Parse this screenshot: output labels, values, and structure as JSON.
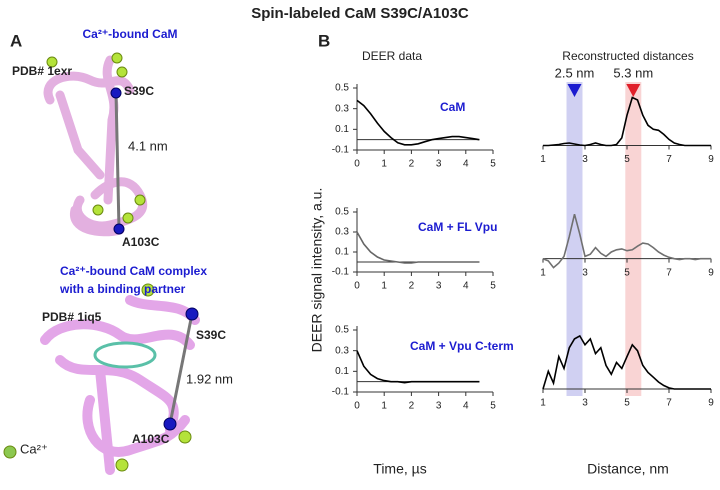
{
  "title": "Spin-labeled CaM S39C/A103C",
  "panel_a": {
    "label": "A",
    "top": {
      "title": "Ca²⁺-bound CaM",
      "pdb": "PDB# 1exr",
      "site1": "S39C",
      "distance": "4.1 nm",
      "site2": "A103C"
    },
    "bottom": {
      "title_lines": [
        "Ca²⁺-bound CaM complex",
        "with a binding partner"
      ],
      "pdb": "PDB# 1iq5",
      "site1": "S39C",
      "distance": "1.92 nm",
      "site2": "A103C",
      "ion": "Ca²⁺"
    }
  },
  "panel_b": {
    "label": "B",
    "left_header": "DEER data",
    "right_header": "Reconstructed distances",
    "y_label": "DEER signal intensity, a.u.",
    "left_x_label": "Time, µs",
    "right_x_label": "Distance, nm",
    "distances": [
      {
        "label": "2.5 nm",
        "value": 2.5,
        "color": "#1c1cd0",
        "band": "#c8c8f0"
      },
      {
        "label": "5.3 nm",
        "value": 5.3,
        "color": "#e0202a",
        "band": "#f8cccc"
      }
    ]
  },
  "chart_data": [
    {
      "type": "line",
      "annotation": "CaM",
      "color": "#000000",
      "xlim": [
        0,
        5
      ],
      "xticks": [
        0,
        1,
        2,
        3,
        4,
        5
      ],
      "ylim": [
        -0.1,
        0.5
      ],
      "yticks": [
        -0.1,
        0.1,
        0.3,
        0.5
      ],
      "x": [
        0,
        0.25,
        0.5,
        0.75,
        1,
        1.25,
        1.5,
        1.75,
        2,
        2.25,
        2.5,
        2.75,
        3,
        3.25,
        3.5,
        3.75,
        4,
        4.25,
        4.5
      ],
      "values": [
        0.38,
        0.33,
        0.25,
        0.16,
        0.08,
        0.02,
        -0.03,
        -0.05,
        -0.05,
        -0.04,
        -0.02,
        0,
        0.01,
        0.02,
        0.03,
        0.03,
        0.02,
        0.01,
        0
      ]
    },
    {
      "type": "line",
      "annotation": "CaM + FL Vpu",
      "color": "#666666",
      "xlim": [
        0,
        5
      ],
      "xticks": [
        0,
        1,
        2,
        3,
        4,
        5
      ],
      "ylim": [
        -0.1,
        0.5
      ],
      "yticks": [
        -0.1,
        0.1,
        0.3,
        0.5
      ],
      "x": [
        0,
        0.25,
        0.5,
        0.75,
        1,
        1.25,
        1.5,
        1.75,
        2,
        2.25,
        2.5,
        2.75,
        3,
        3.25,
        3.5,
        3.75,
        4,
        4.25,
        4.5
      ],
      "values": [
        0.3,
        0.18,
        0.1,
        0.05,
        0.02,
        0.01,
        0,
        -0.01,
        -0.01,
        0,
        0,
        0,
        0,
        0,
        0,
        0,
        0,
        0,
        0
      ]
    },
    {
      "type": "line",
      "annotation": "CaM + Vpu C-term",
      "color": "#000000",
      "xlim": [
        0,
        5
      ],
      "xticks": [
        0,
        1,
        2,
        3,
        4,
        5
      ],
      "ylim": [
        -0.1,
        0.5
      ],
      "yticks": [
        -0.1,
        0.1,
        0.3,
        0.5
      ],
      "x": [
        0,
        0.25,
        0.5,
        0.75,
        1,
        1.25,
        1.5,
        1.75,
        2,
        2.25,
        2.5,
        2.75,
        3,
        3.25,
        3.5,
        3.75,
        4,
        4.25,
        4.5
      ],
      "values": [
        0.3,
        0.15,
        0.07,
        0.03,
        0.01,
        0,
        0,
        -0.01,
        0,
        0,
        0,
        0,
        0,
        0,
        0,
        0,
        0,
        0,
        0
      ]
    },
    {
      "type": "line",
      "color": "#000000",
      "xlim": [
        1,
        9
      ],
      "xticks": [
        1,
        3,
        5,
        7,
        9
      ],
      "ylim": [
        -0.05,
        1
      ],
      "x": [
        1,
        1.25,
        1.5,
        1.75,
        2,
        2.25,
        2.5,
        2.75,
        3,
        3.25,
        3.5,
        3.75,
        4,
        4.25,
        4.5,
        4.75,
        5,
        5.25,
        5.5,
        5.75,
        6,
        6.25,
        6.5,
        6.75,
        7,
        7.25,
        7.5,
        7.75,
        8,
        8.25,
        8.5,
        8.75,
        9
      ],
      "values": [
        0,
        0,
        0.01,
        0.02,
        0.04,
        0.05,
        0.03,
        0.01,
        0,
        0.02,
        0.05,
        0.02,
        0,
        0,
        0.02,
        0.15,
        0.6,
        0.95,
        0.9,
        0.6,
        0.4,
        0.32,
        0.3,
        0.22,
        0.12,
        0.05,
        0.02,
        0,
        0,
        0,
        0,
        0,
        0
      ]
    },
    {
      "type": "line",
      "color": "#707070",
      "xlim": [
        1,
        9
      ],
      "xticks": [
        1,
        3,
        5,
        7,
        9
      ],
      "ylim": [
        -0.3,
        1.05
      ],
      "x": [
        1,
        1.25,
        1.5,
        1.75,
        2,
        2.25,
        2.5,
        2.75,
        3,
        3.25,
        3.5,
        3.75,
        4,
        4.25,
        4.5,
        4.75,
        5,
        5.25,
        5.5,
        5.75,
        6,
        6.25,
        6.5,
        6.75,
        7,
        7.25,
        7.5,
        7.75,
        8,
        8.25,
        8.5,
        8.75,
        9
      ],
      "values": [
        0,
        -0.05,
        -0.2,
        -0.1,
        0.05,
        0.5,
        1.0,
        0.55,
        0.05,
        0.1,
        0.25,
        0.12,
        0.05,
        0.15,
        0.2,
        0.22,
        0.18,
        0.2,
        0.28,
        0.35,
        0.33,
        0.25,
        0.15,
        0.08,
        0.03,
        0,
        -0.02,
        0,
        0,
        -0.02,
        0,
        0,
        0
      ]
    },
    {
      "type": "line",
      "color": "#000000",
      "xlim": [
        1,
        9
      ],
      "xticks": [
        1,
        3,
        5,
        7,
        9
      ],
      "ylim": [
        -0.05,
        1
      ],
      "x": [
        1,
        1.25,
        1.5,
        1.75,
        2,
        2.25,
        2.5,
        2.75,
        3,
        3.25,
        3.5,
        3.75,
        4,
        4.25,
        4.5,
        4.75,
        5,
        5.25,
        5.5,
        5.75,
        6,
        6.25,
        6.5,
        6.75,
        7,
        7.25,
        7.5,
        7.75,
        8,
        8.25,
        8.5,
        8.75,
        9
      ],
      "values": [
        0,
        0.3,
        0.1,
        0.55,
        0.35,
        0.7,
        0.85,
        0.9,
        0.75,
        0.85,
        0.6,
        0.7,
        0.4,
        0.25,
        0.45,
        0.35,
        0.55,
        0.75,
        0.65,
        0.4,
        0.28,
        0.2,
        0.12,
        0.06,
        0.02,
        0,
        0,
        0,
        0,
        0,
        0,
        0,
        0
      ]
    }
  ]
}
